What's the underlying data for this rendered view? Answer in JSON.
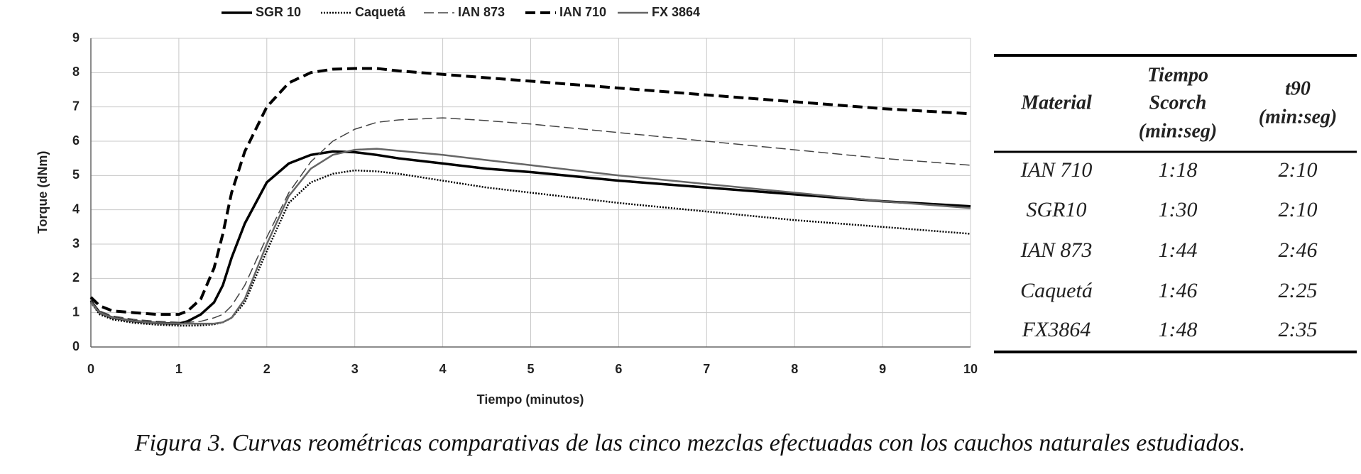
{
  "chart_data": {
    "type": "line",
    "x_label": "Tiempo (minutos)",
    "y_label": "Torque (dNm)",
    "x": [
      0,
      0.1,
      0.25,
      0.5,
      0.75,
      1,
      1.1,
      1.25,
      1.4,
      1.5,
      1.6,
      1.75,
      2,
      2.25,
      2.5,
      2.75,
      3,
      3.25,
      3.5,
      4,
      4.5,
      5,
      6,
      7,
      8,
      9,
      10
    ],
    "series": [
      {
        "name": "SGR 10",
        "color": "#000000",
        "style": "solid",
        "values": [
          1.35,
          1.0,
          0.85,
          0.75,
          0.7,
          0.68,
          0.75,
          0.95,
          1.3,
          1.8,
          2.6,
          3.6,
          4.8,
          5.35,
          5.6,
          5.7,
          5.68,
          5.6,
          5.5,
          5.35,
          5.2,
          5.1,
          4.85,
          4.65,
          4.45,
          4.25,
          4.1
        ]
      },
      {
        "name": "Caquetá",
        "color": "#000000",
        "style": "dotted",
        "values": [
          1.3,
          0.95,
          0.8,
          0.7,
          0.65,
          0.62,
          0.62,
          0.63,
          0.66,
          0.72,
          0.85,
          1.3,
          2.8,
          4.2,
          4.8,
          5.05,
          5.15,
          5.12,
          5.05,
          4.85,
          4.65,
          4.5,
          4.2,
          3.95,
          3.7,
          3.5,
          3.3
        ]
      },
      {
        "name": "IAN 873",
        "color": "#444444",
        "style": "dashed-thin",
        "values": [
          1.35,
          1.05,
          0.9,
          0.8,
          0.75,
          0.72,
          0.72,
          0.75,
          0.85,
          0.95,
          1.2,
          1.8,
          3.2,
          4.5,
          5.4,
          6.0,
          6.35,
          6.55,
          6.62,
          6.68,
          6.6,
          6.5,
          6.25,
          6.0,
          5.75,
          5.5,
          5.3
        ]
      },
      {
        "name": "IAN 710",
        "color": "#000000",
        "style": "dashed-thick",
        "values": [
          1.45,
          1.2,
          1.05,
          1.0,
          0.95,
          0.95,
          1.05,
          1.4,
          2.3,
          3.3,
          4.5,
          5.7,
          7.0,
          7.7,
          8.0,
          8.1,
          8.12,
          8.12,
          8.05,
          7.95,
          7.85,
          7.75,
          7.55,
          7.35,
          7.15,
          6.95,
          6.8
        ]
      },
      {
        "name": "FX 3864",
        "color": "#666666",
        "style": "solid",
        "values": [
          1.3,
          1.0,
          0.85,
          0.75,
          0.7,
          0.68,
          0.68,
          0.68,
          0.68,
          0.72,
          0.85,
          1.4,
          3.0,
          4.4,
          5.2,
          5.6,
          5.75,
          5.78,
          5.72,
          5.6,
          5.45,
          5.3,
          5.0,
          4.75,
          4.5,
          4.25,
          4.05
        ]
      }
    ],
    "xlim": [
      0,
      10
    ],
    "xticks": [
      0,
      1,
      2,
      3,
      4,
      5,
      6,
      7,
      8,
      9,
      10
    ],
    "ylim": [
      0,
      9
    ],
    "yticks": [
      0,
      1,
      2,
      3,
      4,
      5,
      6,
      7,
      8,
      9
    ],
    "grid": true,
    "legend": "top"
  },
  "table": {
    "header": [
      [
        "Material"
      ],
      [
        "Tiempo",
        "Scorch",
        "(min:seg)"
      ],
      [
        "t90",
        "(min:seg)"
      ]
    ],
    "rows": [
      [
        "IAN 710",
        "1:18",
        "2:10"
      ],
      [
        "SGR10",
        "1:30",
        "2:10"
      ],
      [
        "IAN 873",
        "1:44",
        "2:46"
      ],
      [
        "Caquetá",
        "1:46",
        "2:25"
      ],
      [
        "FX3864",
        "1:48",
        "2:35"
      ]
    ]
  },
  "caption": "Figura 3. Curvas reométricas comparativas de las cinco mezclas efectuadas con los cauchos naturales estudiados."
}
